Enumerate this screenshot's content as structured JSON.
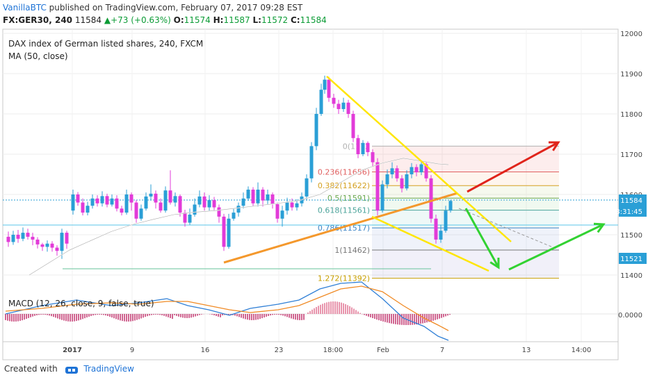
{
  "header": {
    "user": "VanillaBTC",
    "published_text": " published on TradingView.com, February 07, 2017 09:28 EST",
    "symbol": "FX:GER30, 240",
    "last": "11584",
    "change": "+73 (+0.63%)",
    "open_label": "O:",
    "open": "11574",
    "high_label": "H:",
    "high": "11587",
    "low_label": "L:",
    "low": "11572",
    "close_label": "C:",
    "close": "11584"
  },
  "footer": {
    "created_with": "Created with",
    "brand": "TradingView"
  },
  "chart_data": {
    "type": "candlestick",
    "title": "DAX index of German listed shares, 240, FXCM",
    "indicator": "MA (50, close)",
    "macd_label": "MACD (12, 26, close, 9, false, true)",
    "y_ticks": [
      11400,
      11500,
      11600,
      11700,
      11800,
      11900,
      12000
    ],
    "ylim": [
      11340,
      12010
    ],
    "macd_tick": "0.0000",
    "x_ticks": [
      "2017",
      "9",
      "16",
      "23",
      "18:00",
      "Feb",
      "7",
      "13",
      "14:00"
    ],
    "price_label": "11584",
    "countdown_label": "3:31:45",
    "level_label": "11521",
    "colors": {
      "up": "#2a9fd6",
      "down": "#e23bd8",
      "ma": "#ffffff",
      "yellow": "#ffe600",
      "orange": "#f4982c",
      "red": "#e0241b",
      "green": "#32d232"
    },
    "fib_levels": [
      {
        "label": "0(1172",
        "value": 11720
      },
      {
        "label": "0.236(11656)",
        "value": 11656
      },
      {
        "label": "0.382(11622)",
        "value": 11622
      },
      {
        "label": "0.5(11591)",
        "value": 11591
      },
      {
        "label": "0.618(11561)",
        "value": 11561
      },
      {
        "label": "0.786(11517)",
        "value": 11517
      },
      {
        "label": "1(11462)",
        "value": 11462
      },
      {
        "label": "1.272(11392)",
        "value": 11392
      }
    ]
  }
}
